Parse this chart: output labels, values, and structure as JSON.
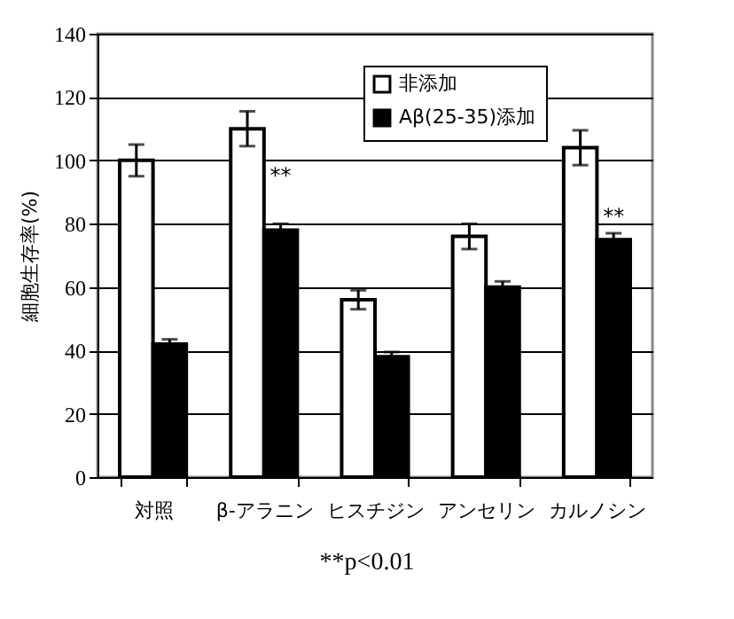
{
  "chart_data": {
    "type": "bar",
    "ylabel": "細胞生存率(%)",
    "categories": [
      "対照",
      "β-アラニン",
      "ヒスチジン",
      "アンセリン",
      "カルノシン"
    ],
    "series": [
      {
        "name": "非添加",
        "color": "#ffffff",
        "values": [
          100,
          110,
          56,
          76,
          104
        ],
        "errors": [
          5,
          5.5,
          3,
          4,
          5.5
        ]
      },
      {
        "name": "Aβ(25-35)添加",
        "color": "#000000",
        "values": [
          42,
          78,
          38,
          60,
          75
        ],
        "errors": [
          1.5,
          2,
          1.5,
          1.8,
          2
        ]
      }
    ],
    "ylim": [
      0,
      140
    ],
    "yticks": [
      0,
      20,
      40,
      60,
      80,
      100,
      120,
      140
    ],
    "grid": "y",
    "legend": "top right",
    "annotations": [
      {
        "text": "**",
        "x": "β-アラニン",
        "y": 98
      },
      {
        "text": "**",
        "x": "カルノシン",
        "y": 85
      },
      "**p<0.01"
    ]
  }
}
